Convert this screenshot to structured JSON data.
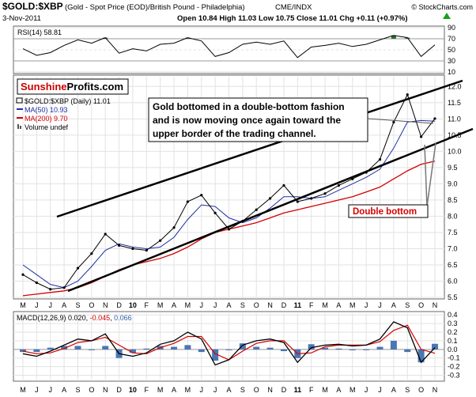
{
  "header": {
    "symbol": "$GOLD:$XBP",
    "description": "(Gold - Spot Price (EOD)/British Pound - Philadelphia)",
    "exchange": "CME/INDX",
    "date": "3-Nov-2011",
    "ohlc": "Open 10.84  High 11.03  Low 10.75  Close 11.01  Chg +0.11 (+0.97%)",
    "ohlc_direction": "up",
    "watermark": "© StockCharts.com"
  },
  "colors": {
    "price": "#000000",
    "ma50": "#1f2fa0",
    "ma200": "#d40000",
    "macd_hist": "#2b5fa8",
    "channel": "#000000",
    "rsi_fill": "#2e6b2e",
    "annotation_box": "#ffffff",
    "double_bottom_text": "#d40000",
    "logo_red": "#cc0000"
  },
  "logo": {
    "part1": "Sunshine",
    "part2": "Profits",
    "part3": ".com"
  },
  "rsi_panel": {
    "label": "RSI(14) 58.81",
    "ticks": [
      "90",
      "70",
      "50",
      "30",
      "10"
    ]
  },
  "price_panel": {
    "legend": [
      {
        "text": "$GOLD:$XBP (Daily) 11.01",
        "icon": "candle-icon"
      },
      {
        "text": "MA(50) 10.93",
        "icon": "line-icon",
        "color": "#1f2fa0"
      },
      {
        "text": "MA(200) 9.70",
        "icon": "line-icon",
        "color": "#d40000"
      },
      {
        "text": "Volume undef",
        "icon": "bar-icon"
      }
    ],
    "annotation_lines": [
      "Gold bottomed in a double-bottom fashion",
      "and is now moving once again toward the",
      "upper border of the trading channel."
    ],
    "double_bottom_label": "Double bottom",
    "y_ticks": [
      "12.0",
      "11.5",
      "11.0",
      "10.5",
      "10.0",
      "9.5",
      "9.0",
      "8.5",
      "8.0",
      "7.5",
      "7.0",
      "6.5",
      "6.0",
      "5.5"
    ]
  },
  "x_axis": {
    "labels": [
      "M",
      "J",
      "J",
      "A",
      "S",
      "O",
      "N",
      "D",
      "10",
      "F",
      "M",
      "A",
      "M",
      "J",
      "J",
      "A",
      "S",
      "O",
      "N",
      "D",
      "11",
      "F",
      "M",
      "A",
      "M",
      "J",
      "J",
      "A",
      "S",
      "O",
      "N"
    ]
  },
  "macd_panel": {
    "label": "MACD(12,26,9)",
    "value1": "0.020",
    "value2": "-0.045",
    "value3": "0.066",
    "y_ticks": [
      "0.4",
      "0.3",
      "0.2",
      "0.1",
      "0.0",
      "-0.1",
      "-0.2",
      "-0.3"
    ]
  },
  "chart_data": {
    "type": "line",
    "title": "$GOLD:$XBP (Gold - Spot Price (EOD)/British Pound - Philadelphia) CME/INDX",
    "x": [
      "2009-05",
      "2009-06",
      "2009-07",
      "2009-08",
      "2009-09",
      "2009-10",
      "2009-11",
      "2009-12",
      "2010-01",
      "2010-02",
      "2010-03",
      "2010-04",
      "2010-05",
      "2010-06",
      "2010-07",
      "2010-08",
      "2010-09",
      "2010-10",
      "2010-11",
      "2010-12",
      "2011-01",
      "2011-02",
      "2011-03",
      "2011-04",
      "2011-05",
      "2011-06",
      "2011-07",
      "2011-08",
      "2011-09",
      "2011-10",
      "2011-11"
    ],
    "series": [
      {
        "name": "$GOLD:$XBP",
        "values": [
          6.2,
          5.95,
          5.75,
          5.8,
          6.4,
          6.85,
          7.45,
          7.1,
          7.0,
          6.95,
          7.25,
          7.65,
          8.45,
          8.65,
          8.1,
          7.6,
          7.85,
          8.2,
          8.55,
          8.95,
          8.45,
          8.55,
          8.7,
          8.95,
          9.15,
          9.35,
          9.75,
          10.9,
          11.75,
          10.45,
          11.01
        ]
      },
      {
        "name": "MA(50)",
        "values": [
          6.5,
          6.2,
          5.9,
          5.8,
          6.0,
          6.45,
          6.95,
          7.15,
          7.05,
          7.0,
          7.05,
          7.35,
          7.9,
          8.35,
          8.3,
          7.95,
          7.8,
          7.95,
          8.25,
          8.6,
          8.6,
          8.55,
          8.6,
          8.8,
          9.0,
          9.2,
          9.45,
          10.1,
          10.9,
          10.95,
          10.93
        ]
      },
      {
        "name": "MA(200)",
        "values": [
          5.55,
          5.6,
          5.65,
          5.7,
          5.8,
          5.95,
          6.15,
          6.35,
          6.5,
          6.6,
          6.7,
          6.85,
          7.05,
          7.3,
          7.5,
          7.6,
          7.7,
          7.8,
          7.95,
          8.1,
          8.2,
          8.3,
          8.4,
          8.5,
          8.6,
          8.75,
          8.9,
          9.15,
          9.4,
          9.6,
          9.7
        ]
      }
    ],
    "rsi": [
      52,
      40,
      45,
      58,
      68,
      62,
      72,
      44,
      52,
      48,
      60,
      62,
      72,
      66,
      38,
      45,
      60,
      64,
      60,
      66,
      36,
      55,
      58,
      62,
      56,
      60,
      68,
      76,
      72,
      38,
      58.81
    ],
    "macd": [
      -0.05,
      -0.08,
      -0.02,
      0.05,
      0.12,
      0.1,
      0.18,
      -0.05,
      -0.08,
      -0.04,
      0.06,
      0.1,
      0.2,
      0.12,
      -0.18,
      -0.12,
      0.05,
      0.1,
      0.12,
      0.08,
      -0.15,
      0.02,
      0.05,
      0.06,
      0.04,
      0.05,
      0.12,
      0.32,
      0.25,
      -0.15,
      0.02
    ],
    "macd_signal": [
      -0.02,
      -0.05,
      -0.04,
      0.01,
      0.08,
      0.1,
      0.14,
      0.05,
      -0.04,
      -0.05,
      0.02,
      0.07,
      0.15,
      0.15,
      -0.05,
      -0.12,
      -0.02,
      0.07,
      0.1,
      0.1,
      -0.05,
      -0.04,
      0.03,
      0.05,
      0.05,
      0.05,
      0.09,
      0.22,
      0.28,
      0.0,
      -0.045
    ],
    "ylim": [
      5.5,
      12.3
    ],
    "rsi_ylim": [
      10,
      90
    ],
    "macd_ylim": [
      -0.35,
      0.42
    ],
    "grid": true,
    "legend_position": "top-left"
  }
}
